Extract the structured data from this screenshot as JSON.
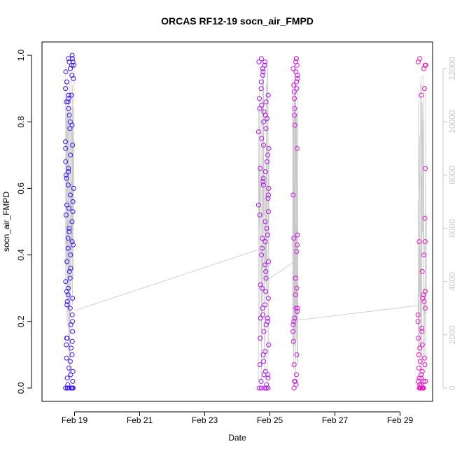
{
  "chart_data": {
    "type": "scatter",
    "title": "ORCAS RF12-19 socn_air_FMPD",
    "xlabel": "Date",
    "ylabel": "socn_air_FMPD",
    "x_ticks": [
      "Feb 19",
      "Feb 21",
      "Feb 23",
      "Feb 25",
      "Feb 27",
      "Feb 29"
    ],
    "x_tick_days": [
      19,
      21,
      23,
      25,
      27,
      29
    ],
    "xlim": [
      18.0,
      30.0
    ],
    "y_ticks": [
      "0.0",
      "0.2",
      "0.4",
      "0.6",
      "0.8",
      "1.0"
    ],
    "y_tick_values": [
      0,
      0.2,
      0.4,
      0.6,
      0.8,
      1.0
    ],
    "ylim": [
      -0.04,
      1.04
    ],
    "y2_ticks": [
      "0",
      "2000",
      "4000",
      "6000",
      "8000",
      "10000",
      "12000"
    ],
    "y2_tick_values": [
      0,
      2000,
      4000,
      6000,
      8000,
      10000,
      12000
    ],
    "y2lim": [
      -500,
      13000
    ],
    "grid": false,
    "legend": "none",
    "colors": {
      "flight1": "#3a10ff",
      "flight2": "#b010f0",
      "flight3": "#d414e8",
      "flight4": "#f010c8",
      "altitude_line": "#c8c8c8",
      "right_axis": "#c8c8c8"
    },
    "series": [
      {
        "x_range": [
          18.72,
          18.98
        ],
        "values": [
          1.0,
          0.99,
          0.98,
          0.97,
          0.96,
          0.95,
          0.93,
          0.92,
          0.9,
          0.88,
          0.87,
          0.86,
          0.84,
          0.82,
          0.8,
          0.79,
          0.78,
          0.74,
          0.73,
          0.72,
          0.7,
          0.68,
          0.66,
          0.65,
          0.64,
          0.63,
          0.61,
          0.6,
          0.58,
          0.56,
          0.54,
          0.53,
          0.52,
          0.5,
          0.48,
          0.47,
          0.45,
          0.44,
          0.43,
          0.42,
          0.4,
          0.38,
          0.36,
          0.35,
          0.33,
          0.32,
          0.3,
          0.28,
          0.27,
          0.26,
          0.25,
          0.24,
          0.22,
          0.2,
          0.19,
          0.17,
          0.15,
          0.14,
          0.13,
          0.12,
          0.1,
          0.09,
          0.08,
          0.06,
          0.05,
          0.04,
          0.03,
          0.02,
          0.01,
          0.0,
          0.0,
          0.0,
          0.0,
          0.0,
          0.98,
          0.97,
          0.94,
          0.86,
          0.55,
          0.29,
          0.15,
          0.0,
          0.0,
          0.99,
          0.88,
          0.0
        ]
      },
      {
        "x_range": [
          24.65,
          24.97
        ],
        "values": [
          0.99,
          0.98,
          0.97,
          0.96,
          0.95,
          0.94,
          0.92,
          0.9,
          0.88,
          0.86,
          0.85,
          0.84,
          0.82,
          0.81,
          0.8,
          0.78,
          0.77,
          0.75,
          0.73,
          0.72,
          0.7,
          0.68,
          0.66,
          0.65,
          0.63,
          0.61,
          0.6,
          0.58,
          0.57,
          0.55,
          0.53,
          0.52,
          0.5,
          0.48,
          0.46,
          0.44,
          0.42,
          0.4,
          0.38,
          0.37,
          0.35,
          0.33,
          0.31,
          0.3,
          0.29,
          0.27,
          0.25,
          0.24,
          0.22,
          0.21,
          0.2,
          0.19,
          0.17,
          0.15,
          0.13,
          0.11,
          0.1,
          0.08,
          0.07,
          0.05,
          0.04,
          0.03,
          0.02,
          0.01,
          0.0,
          0.0,
          0.0,
          0.0,
          0.97,
          0.96,
          0.87,
          0.83,
          0.62,
          0.45,
          0.21,
          0.04,
          0.0,
          0.98
        ]
      },
      {
        "x_range": [
          25.7,
          25.86
        ],
        "values": [
          0.99,
          0.97,
          0.96,
          0.95,
          0.94,
          0.92,
          0.9,
          0.89,
          0.87,
          0.84,
          0.82,
          0.79,
          0.72,
          0.58,
          0.46,
          0.45,
          0.43,
          0.41,
          0.33,
          0.3,
          0.28,
          0.24,
          0.23,
          0.21,
          0.2,
          0.19,
          0.17,
          0.14,
          0.1,
          0.07,
          0.04,
          0.02,
          0.01,
          0.0,
          0.99,
          0.98,
          0.93,
          0.91,
          0.24,
          0.02
        ]
      },
      {
        "x_range": [
          29.55,
          29.8
        ],
        "values": [
          0.99,
          0.98,
          0.97,
          0.96,
          0.9,
          0.88,
          0.66,
          0.51,
          0.44,
          0.4,
          0.35,
          0.29,
          0.28,
          0.26,
          0.24,
          0.22,
          0.2,
          0.18,
          0.17,
          0.15,
          0.13,
          0.12,
          0.1,
          0.09,
          0.08,
          0.07,
          0.06,
          0.05,
          0.04,
          0.03,
          0.03,
          0.02,
          0.02,
          0.01,
          0.01,
          0.01,
          0.0,
          0.0,
          0.0,
          0.0,
          0.0,
          0.0,
          0.0,
          0.0,
          0.0,
          0.0,
          0.0,
          0.0,
          0.97,
          0.44,
          0.27,
          0.02
        ]
      }
    ],
    "altitude_connectors": [
      {
        "from_x": 18.98,
        "from_y2": 2900,
        "to_x": 24.65,
        "to_y2": 5200
      },
      {
        "from_x": 24.97,
        "from_y2": 4100,
        "to_x": 25.7,
        "to_y2": 4700
      },
      {
        "from_x": 25.86,
        "from_y2": 2550,
        "to_x": 29.55,
        "to_y2": 3100
      }
    ]
  }
}
